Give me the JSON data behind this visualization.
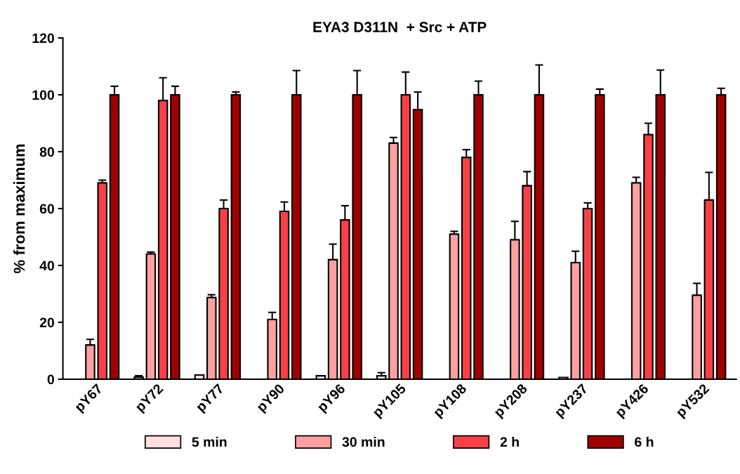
{
  "chart_data": {
    "type": "bar",
    "title": "EYA3 D311N  + Src + ATP",
    "ylabel": "% from maximum",
    "categories": [
      "pY67",
      "pY72",
      "pY77",
      "pY90",
      "pY96",
      "pY105",
      "pY108",
      "pY208",
      "pY237",
      "pY426",
      "pY532"
    ],
    "series": [
      {
        "name": "5 min",
        "color": "#ffe0e0",
        "values": [
          null,
          0.7,
          1.5,
          null,
          1.2,
          1.2,
          null,
          null,
          0.6,
          null,
          null
        ],
        "errors": [
          null,
          [
            0.7,
            1.2
          ],
          null,
          null,
          null,
          [
            1.2,
            2.3
          ],
          null,
          null,
          null,
          null,
          null
        ]
      },
      {
        "name": "30 min",
        "color": "#ffa0a0",
        "values": [
          12,
          44,
          28.7,
          21,
          42,
          83,
          51,
          49,
          41,
          69,
          29.5
        ],
        "errors": [
          [
            12,
            14
          ],
          [
            44,
            44.7
          ],
          [
            28.7,
            29.7
          ],
          [
            21,
            23.5
          ],
          [
            42,
            47.5
          ],
          [
            83,
            85
          ],
          [
            51,
            52
          ],
          [
            49,
            55.5
          ],
          [
            41,
            45
          ],
          [
            69,
            71
          ],
          [
            29.5,
            33.7
          ]
        ]
      },
      {
        "name": "2 h",
        "color": "#f84046",
        "values": [
          69,
          98,
          60,
          59,
          56,
          100,
          78,
          68,
          60,
          86,
          63
        ],
        "errors": [
          [
            69,
            70
          ],
          [
            98,
            106
          ],
          [
            60,
            63
          ],
          [
            59,
            62.3
          ],
          [
            56,
            61
          ],
          [
            100,
            108
          ],
          [
            78,
            80.7
          ],
          [
            68,
            73
          ],
          [
            60,
            62
          ],
          [
            86,
            90
          ],
          [
            63,
            72.7
          ]
        ]
      },
      {
        "name": "6 h",
        "color": "#a00000",
        "values": [
          100,
          100,
          100,
          100,
          100,
          94.8,
          100,
          100,
          100,
          100,
          100
        ],
        "errors": [
          [
            100,
            103
          ],
          [
            100,
            103
          ],
          [
            100,
            101
          ],
          [
            100,
            108.5
          ],
          [
            100,
            108.5
          ],
          [
            94.8,
            101
          ],
          [
            100,
            104.8
          ],
          [
            100,
            110.5
          ],
          [
            100,
            102
          ],
          [
            100,
            108.7
          ],
          [
            100,
            102.3
          ]
        ]
      }
    ],
    "ylim": [
      0,
      120
    ],
    "yticks": [
      0,
      20,
      40,
      60,
      80,
      100,
      120
    ],
    "grid": false,
    "legend": "bottom"
  }
}
